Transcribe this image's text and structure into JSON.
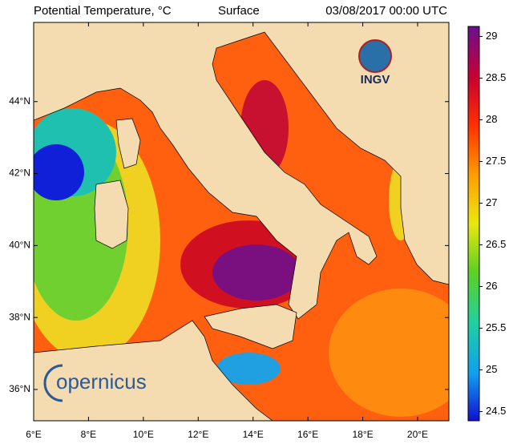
{
  "header": {
    "title": "Potential Temperature, °C",
    "level": "Surface",
    "time": "03/08/2017 00:00 UTC"
  },
  "map": {
    "xlim": [
      6,
      21.14
    ],
    "ylim": [
      35.13,
      46.2
    ],
    "xticks": [
      {
        "value": 6,
        "label": "6°E"
      },
      {
        "value": 8,
        "label": "8°E"
      },
      {
        "value": 10,
        "label": "10°E"
      },
      {
        "value": 12,
        "label": "12°E"
      },
      {
        "value": 14,
        "label": "14°E"
      },
      {
        "value": 16,
        "label": "16°E"
      },
      {
        "value": 18,
        "label": "18°E"
      },
      {
        "value": 20,
        "label": "20°E"
      }
    ],
    "yticks": [
      {
        "value": 36,
        "label": "36°N"
      },
      {
        "value": 38,
        "label": "38°N"
      },
      {
        "value": 40,
        "label": "40°N"
      },
      {
        "value": 42,
        "label": "42°N"
      },
      {
        "value": 44,
        "label": "44°N"
      }
    ]
  },
  "colorbar": {
    "lim": [
      24.39,
      29.12
    ],
    "ticks": [
      24.5,
      25,
      25.5,
      26,
      26.5,
      27,
      27.5,
      28,
      28.5,
      29
    ]
  },
  "logos": {
    "ingv": "INGV",
    "copernicus": "opernicus"
  }
}
